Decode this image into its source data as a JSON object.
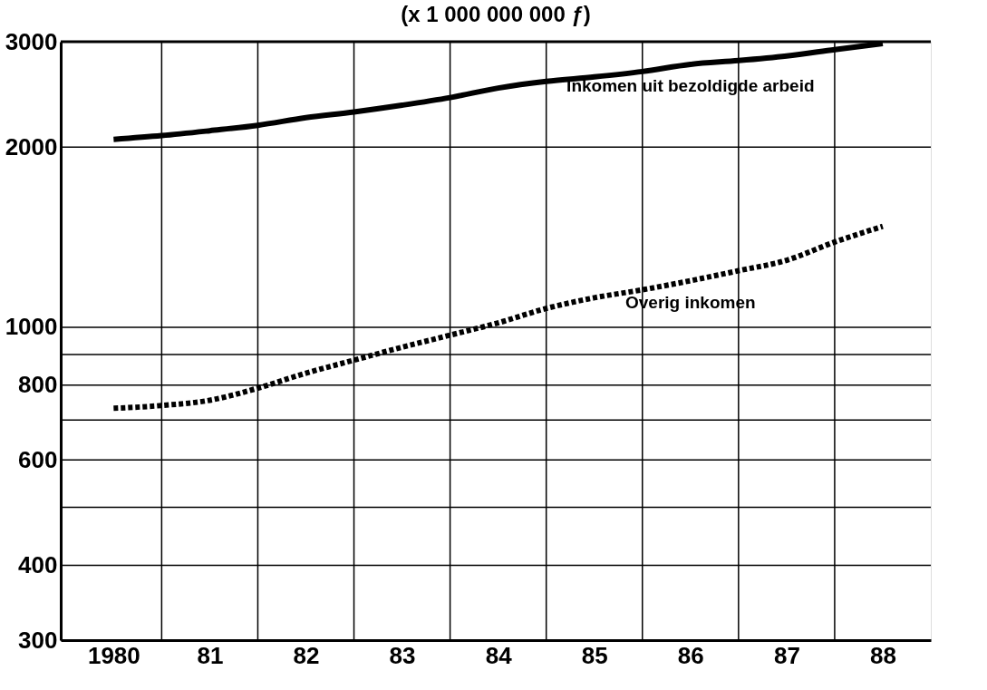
{
  "chart_data": {
    "type": "line",
    "title": "(x 1 000 000 000 ƒ)",
    "log": "y",
    "grid": true,
    "marker": "none",
    "xlim": [
      1979.45,
      1988.5
    ],
    "ylim": [
      300,
      3000
    ],
    "xticks": [
      {
        "value": 1980,
        "label": "1980"
      },
      {
        "value": 1981,
        "label": "81"
      },
      {
        "value": 1982,
        "label": "82"
      },
      {
        "value": 1983,
        "label": "83"
      },
      {
        "value": 1984,
        "label": "84"
      },
      {
        "value": 1985,
        "label": "85"
      },
      {
        "value": 1986,
        "label": "86"
      },
      {
        "value": 1987,
        "label": "87"
      },
      {
        "value": 1988,
        "label": "88"
      },
      {
        "value": 1980.5,
        "label": null
      },
      {
        "value": 1981.5,
        "label": null
      },
      {
        "value": 1982.5,
        "label": null
      },
      {
        "value": 1983.5,
        "label": null
      },
      {
        "value": 1984.5,
        "label": null
      },
      {
        "value": 1985.5,
        "label": null
      },
      {
        "value": 1986.5,
        "label": null
      },
      {
        "value": 1987.5,
        "label": null
      }
    ],
    "yticks": [
      300,
      400,
      {
        "value": 500,
        "label": null
      },
      600,
      {
        "value": 700,
        "label": null
      },
      800,
      {
        "value": 900,
        "label": null
      },
      1000,
      2000,
      3000
    ],
    "x": [
      1980,
      1980.5,
      1981,
      1981.5,
      1982,
      1982.5,
      1983,
      1983.5,
      1984,
      1984.5,
      1985,
      1985.5,
      1986,
      1986.5,
      1987,
      1987.5,
      1988
    ],
    "series": [
      {
        "name": "Inkomen uit bezoldigde arbeid",
        "color": "#000000",
        "line_style": "solid",
        "values": [
          2060,
          2090,
          2130,
          2175,
          2240,
          2290,
          2350,
          2420,
          2510,
          2575,
          2620,
          2675,
          2750,
          2790,
          2840,
          2910,
          2980
        ]
      },
      {
        "name": "Overig inkomen",
        "color": "#000000",
        "line_style": "dotted",
        "values": [
          732,
          740,
          755,
          791,
          838,
          881,
          926,
          970,
          1017,
          1075,
          1120,
          1155,
          1196,
          1243,
          1294,
          1388,
          1474
        ]
      }
    ]
  }
}
